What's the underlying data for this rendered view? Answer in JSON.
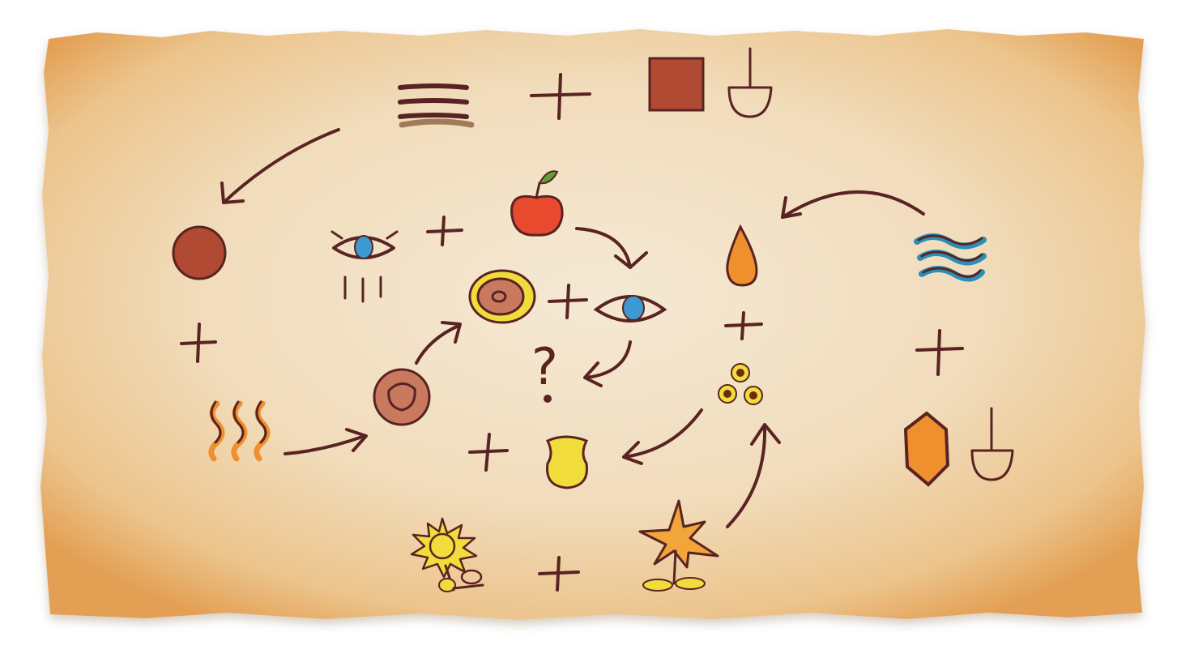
{
  "puzzle": {
    "question_mark": "?",
    "colors": {
      "ink": "#5a2323",
      "parchment_light": "#f4e6cf",
      "parchment_edge": "#e7a657",
      "rust": "#b04a32",
      "clay": "#c97a5e",
      "apple_red": "#e94a2d",
      "leaf_green": "#59a336",
      "eye_blue": "#3d9ad1",
      "flame_orange": "#ef8f2e",
      "yellow": "#f0dc3a",
      "water_blue": "#2b8fb8",
      "seed_brown": "#6b2a12"
    },
    "icons": [
      "striped-stone-icon",
      "plus-icon",
      "square-block-icon",
      "spade-icon",
      "arrow-icon",
      "red-circle-icon",
      "eye-crying-icon",
      "apple-icon",
      "drop-icon",
      "water-waves-icon",
      "donut-icon",
      "eye-icon",
      "heat-waves-icon",
      "clay-pot-icon",
      "seeds-icon",
      "cup-icon",
      "sun-flower-icon",
      "star-flower-icon",
      "hexagon-icon"
    ]
  }
}
